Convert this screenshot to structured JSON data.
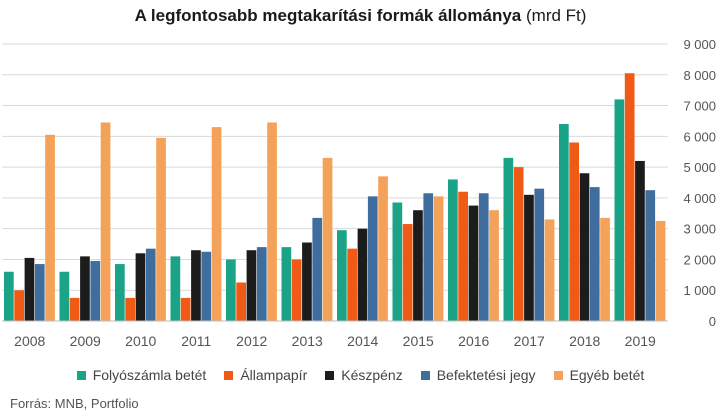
{
  "chart_data": {
    "type": "bar",
    "title": "A legfontosabb megtakarítási formák állománya",
    "title_unit": "(mrd Ft)",
    "categories": [
      "2008",
      "2009",
      "2010",
      "2011",
      "2012",
      "2013",
      "2014",
      "2015",
      "2016",
      "2017",
      "2018",
      "2019"
    ],
    "ylim": [
      0,
      9000
    ],
    "yticks": [
      0,
      1000,
      2000,
      3000,
      4000,
      5000,
      6000,
      7000,
      8000,
      9000
    ],
    "ytick_labels": [
      "0",
      "1 000",
      "2 000",
      "3 000",
      "4 000",
      "5 000",
      "6 000",
      "7 000",
      "8 000",
      "9 000"
    ],
    "y_axis_position": "right",
    "grid": true,
    "legend_position": "bottom",
    "series": [
      {
        "name": "Folyószámla betét",
        "color": "#1aa386",
        "values": [
          1600,
          1600,
          1850,
          2100,
          2000,
          2400,
          2950,
          3850,
          4600,
          5300,
          6400,
          7200
        ]
      },
      {
        "name": "Állampapír",
        "color": "#f05a14",
        "values": [
          1000,
          750,
          750,
          750,
          1250,
          2000,
          2350,
          3150,
          4200,
          5000,
          5800,
          8050
        ]
      },
      {
        "name": "Készpénz",
        "color": "#1c1c1c",
        "values": [
          2050,
          2100,
          2200,
          2300,
          2300,
          2550,
          3000,
          3600,
          3750,
          4100,
          4800,
          5200
        ]
      },
      {
        "name": "Befektetési jegy",
        "color": "#3f6e9e",
        "values": [
          1850,
          1950,
          2350,
          2250,
          2400,
          3350,
          4050,
          4150,
          4150,
          4300,
          4350,
          4250
        ]
      },
      {
        "name": "Egyéb betét",
        "color": "#f4a259",
        "values": [
          6050,
          6450,
          5950,
          6300,
          6450,
          5300,
          4700,
          4050,
          3600,
          3300,
          3350,
          3250
        ]
      }
    ],
    "source": "Forrás: MNB, Portfolio"
  }
}
